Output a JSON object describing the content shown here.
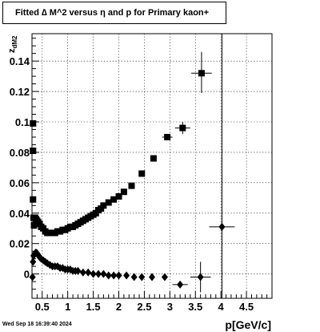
{
  "header": {
    "title": "Fitted ∆ M^2 versus η and p for Primary kaon+"
  },
  "footer": {
    "timestamp": "Wed Sep 18 16:39:40 2024"
  },
  "chart_data": {
    "type": "scatter",
    "title": "Fitted ∆ M^2 versus η and p for Primary kaon+",
    "xlabel": "p[GeV/c]",
    "ylabel": "z_dM2",
    "xlim": [
      0.3,
      5.0
    ],
    "ylim": [
      -0.016,
      0.158
    ],
    "grid": true,
    "x_ticks": [
      "0.5",
      "1",
      "1.5",
      "2",
      "2.5",
      "3",
      "3.5",
      "4",
      "4.5"
    ],
    "y_ticks": [
      "0",
      "0.02",
      "0.04",
      "0.06",
      "0.08",
      "0.1",
      "0.12",
      "0.14"
    ],
    "series": [
      {
        "marker": "square",
        "points": [
          {
            "x": 0.32,
            "y": 0.099
          },
          {
            "x": 0.32,
            "y": 0.081
          },
          {
            "x": 0.32,
            "y": 0.049
          },
          {
            "x": 0.33,
            "y": 0.037
          },
          {
            "x": 0.34,
            "y": 0.032
          },
          {
            "x": 0.36,
            "y": 0.037
          },
          {
            "x": 0.38,
            "y": 0.036
          },
          {
            "x": 0.4,
            "y": 0.035
          },
          {
            "x": 0.42,
            "y": 0.034
          },
          {
            "x": 0.45,
            "y": 0.033
          },
          {
            "x": 0.48,
            "y": 0.031
          },
          {
            "x": 0.52,
            "y": 0.03
          },
          {
            "x": 0.56,
            "y": 0.028
          },
          {
            "x": 0.6,
            "y": 0.027
          },
          {
            "x": 0.65,
            "y": 0.027
          },
          {
            "x": 0.7,
            "y": 0.027
          },
          {
            "x": 0.75,
            "y": 0.027
          },
          {
            "x": 0.8,
            "y": 0.028
          },
          {
            "x": 0.85,
            "y": 0.028
          },
          {
            "x": 0.9,
            "y": 0.029
          },
          {
            "x": 0.95,
            "y": 0.029
          },
          {
            "x": 1.0,
            "y": 0.03
          },
          {
            "x": 1.05,
            "y": 0.031
          },
          {
            "x": 1.1,
            "y": 0.031
          },
          {
            "x": 1.15,
            "y": 0.032
          },
          {
            "x": 1.2,
            "y": 0.033
          },
          {
            "x": 1.25,
            "y": 0.034
          },
          {
            "x": 1.3,
            "y": 0.035
          },
          {
            "x": 1.35,
            "y": 0.036
          },
          {
            "x": 1.4,
            "y": 0.037
          },
          {
            "x": 1.45,
            "y": 0.038
          },
          {
            "x": 1.5,
            "y": 0.039
          },
          {
            "x": 1.55,
            "y": 0.04
          },
          {
            "x": 1.6,
            "y": 0.042
          },
          {
            "x": 1.65,
            "y": 0.043
          },
          {
            "x": 1.7,
            "y": 0.045
          },
          {
            "x": 1.8,
            "y": 0.047
          },
          {
            "x": 1.9,
            "y": 0.049
          },
          {
            "x": 2.0,
            "y": 0.051
          },
          {
            "x": 2.1,
            "y": 0.054
          },
          {
            "x": 2.25,
            "y": 0.058
          },
          {
            "x": 2.45,
            "y": 0.066
          },
          {
            "x": 2.68,
            "y": 0.076
          },
          {
            "x": 2.95,
            "y": 0.09
          },
          {
            "x": 3.25,
            "y": 0.096
          },
          {
            "x": 3.62,
            "y": 0.132
          }
        ]
      },
      {
        "marker": "diamond",
        "points": [
          {
            "x": 0.31,
            "y": -0.002
          },
          {
            "x": 0.32,
            "y": 0.008
          },
          {
            "x": 0.33,
            "y": 0.012
          },
          {
            "x": 0.35,
            "y": 0.013
          },
          {
            "x": 0.37,
            "y": 0.014
          },
          {
            "x": 0.39,
            "y": 0.014
          },
          {
            "x": 0.41,
            "y": 0.013
          },
          {
            "x": 0.43,
            "y": 0.012
          },
          {
            "x": 0.45,
            "y": 0.011
          },
          {
            "x": 0.48,
            "y": 0.01
          },
          {
            "x": 0.52,
            "y": 0.009
          },
          {
            "x": 0.56,
            "y": 0.008
          },
          {
            "x": 0.6,
            "y": 0.007
          },
          {
            "x": 0.65,
            "y": 0.006
          },
          {
            "x": 0.7,
            "y": 0.005
          },
          {
            "x": 0.75,
            "y": 0.005
          },
          {
            "x": 0.8,
            "y": 0.005
          },
          {
            "x": 0.85,
            "y": 0.004
          },
          {
            "x": 0.9,
            "y": 0.004
          },
          {
            "x": 0.95,
            "y": 0.003
          },
          {
            "x": 1.0,
            "y": 0.003
          },
          {
            "x": 1.05,
            "y": 0.003
          },
          {
            "x": 1.1,
            "y": 0.002
          },
          {
            "x": 1.15,
            "y": 0.002
          },
          {
            "x": 1.2,
            "y": 0.002
          },
          {
            "x": 1.3,
            "y": 0.001
          },
          {
            "x": 1.4,
            "y": 0.001
          },
          {
            "x": 1.5,
            "y": 0.0
          },
          {
            "x": 1.6,
            "y": 0.0
          },
          {
            "x": 1.7,
            "y": 0.0
          },
          {
            "x": 1.8,
            "y": -0.001
          },
          {
            "x": 1.9,
            "y": -0.001
          },
          {
            "x": 2.0,
            "y": -0.001
          },
          {
            "x": 2.15,
            "y": -0.001
          },
          {
            "x": 2.3,
            "y": -0.002
          },
          {
            "x": 2.45,
            "y": -0.002
          },
          {
            "x": 2.65,
            "y": -0.002
          },
          {
            "x": 2.9,
            "y": -0.002
          },
          {
            "x": 3.2,
            "y": -0.007
          },
          {
            "x": 3.6,
            "y": -0.002
          },
          {
            "x": 4.02,
            "y": 0.031
          }
        ]
      }
    ],
    "error_bars": [
      {
        "x": 3.62,
        "y": 0.132,
        "xerr": 0.2,
        "ylow": 0.119,
        "yhigh": 0.146
      },
      {
        "x": 3.25,
        "y": 0.096,
        "xerr": 0.15,
        "ylow": 0.092,
        "yhigh": 0.1
      },
      {
        "x": 2.95,
        "y": 0.09,
        "xerr": 0.1,
        "ylow": 0.088,
        "yhigh": 0.092
      },
      {
        "x": 3.2,
        "y": -0.007,
        "xerr": 0.15,
        "ylow": -0.009,
        "yhigh": -0.005
      },
      {
        "x": 3.6,
        "y": -0.002,
        "xerr": 0.2,
        "ylow": -0.012,
        "yhigh": 0.008
      },
      {
        "x": 4.02,
        "y": 0.031,
        "xerr": 0.25,
        "ylow": -0.016,
        "yhigh": 0.158
      }
    ]
  }
}
